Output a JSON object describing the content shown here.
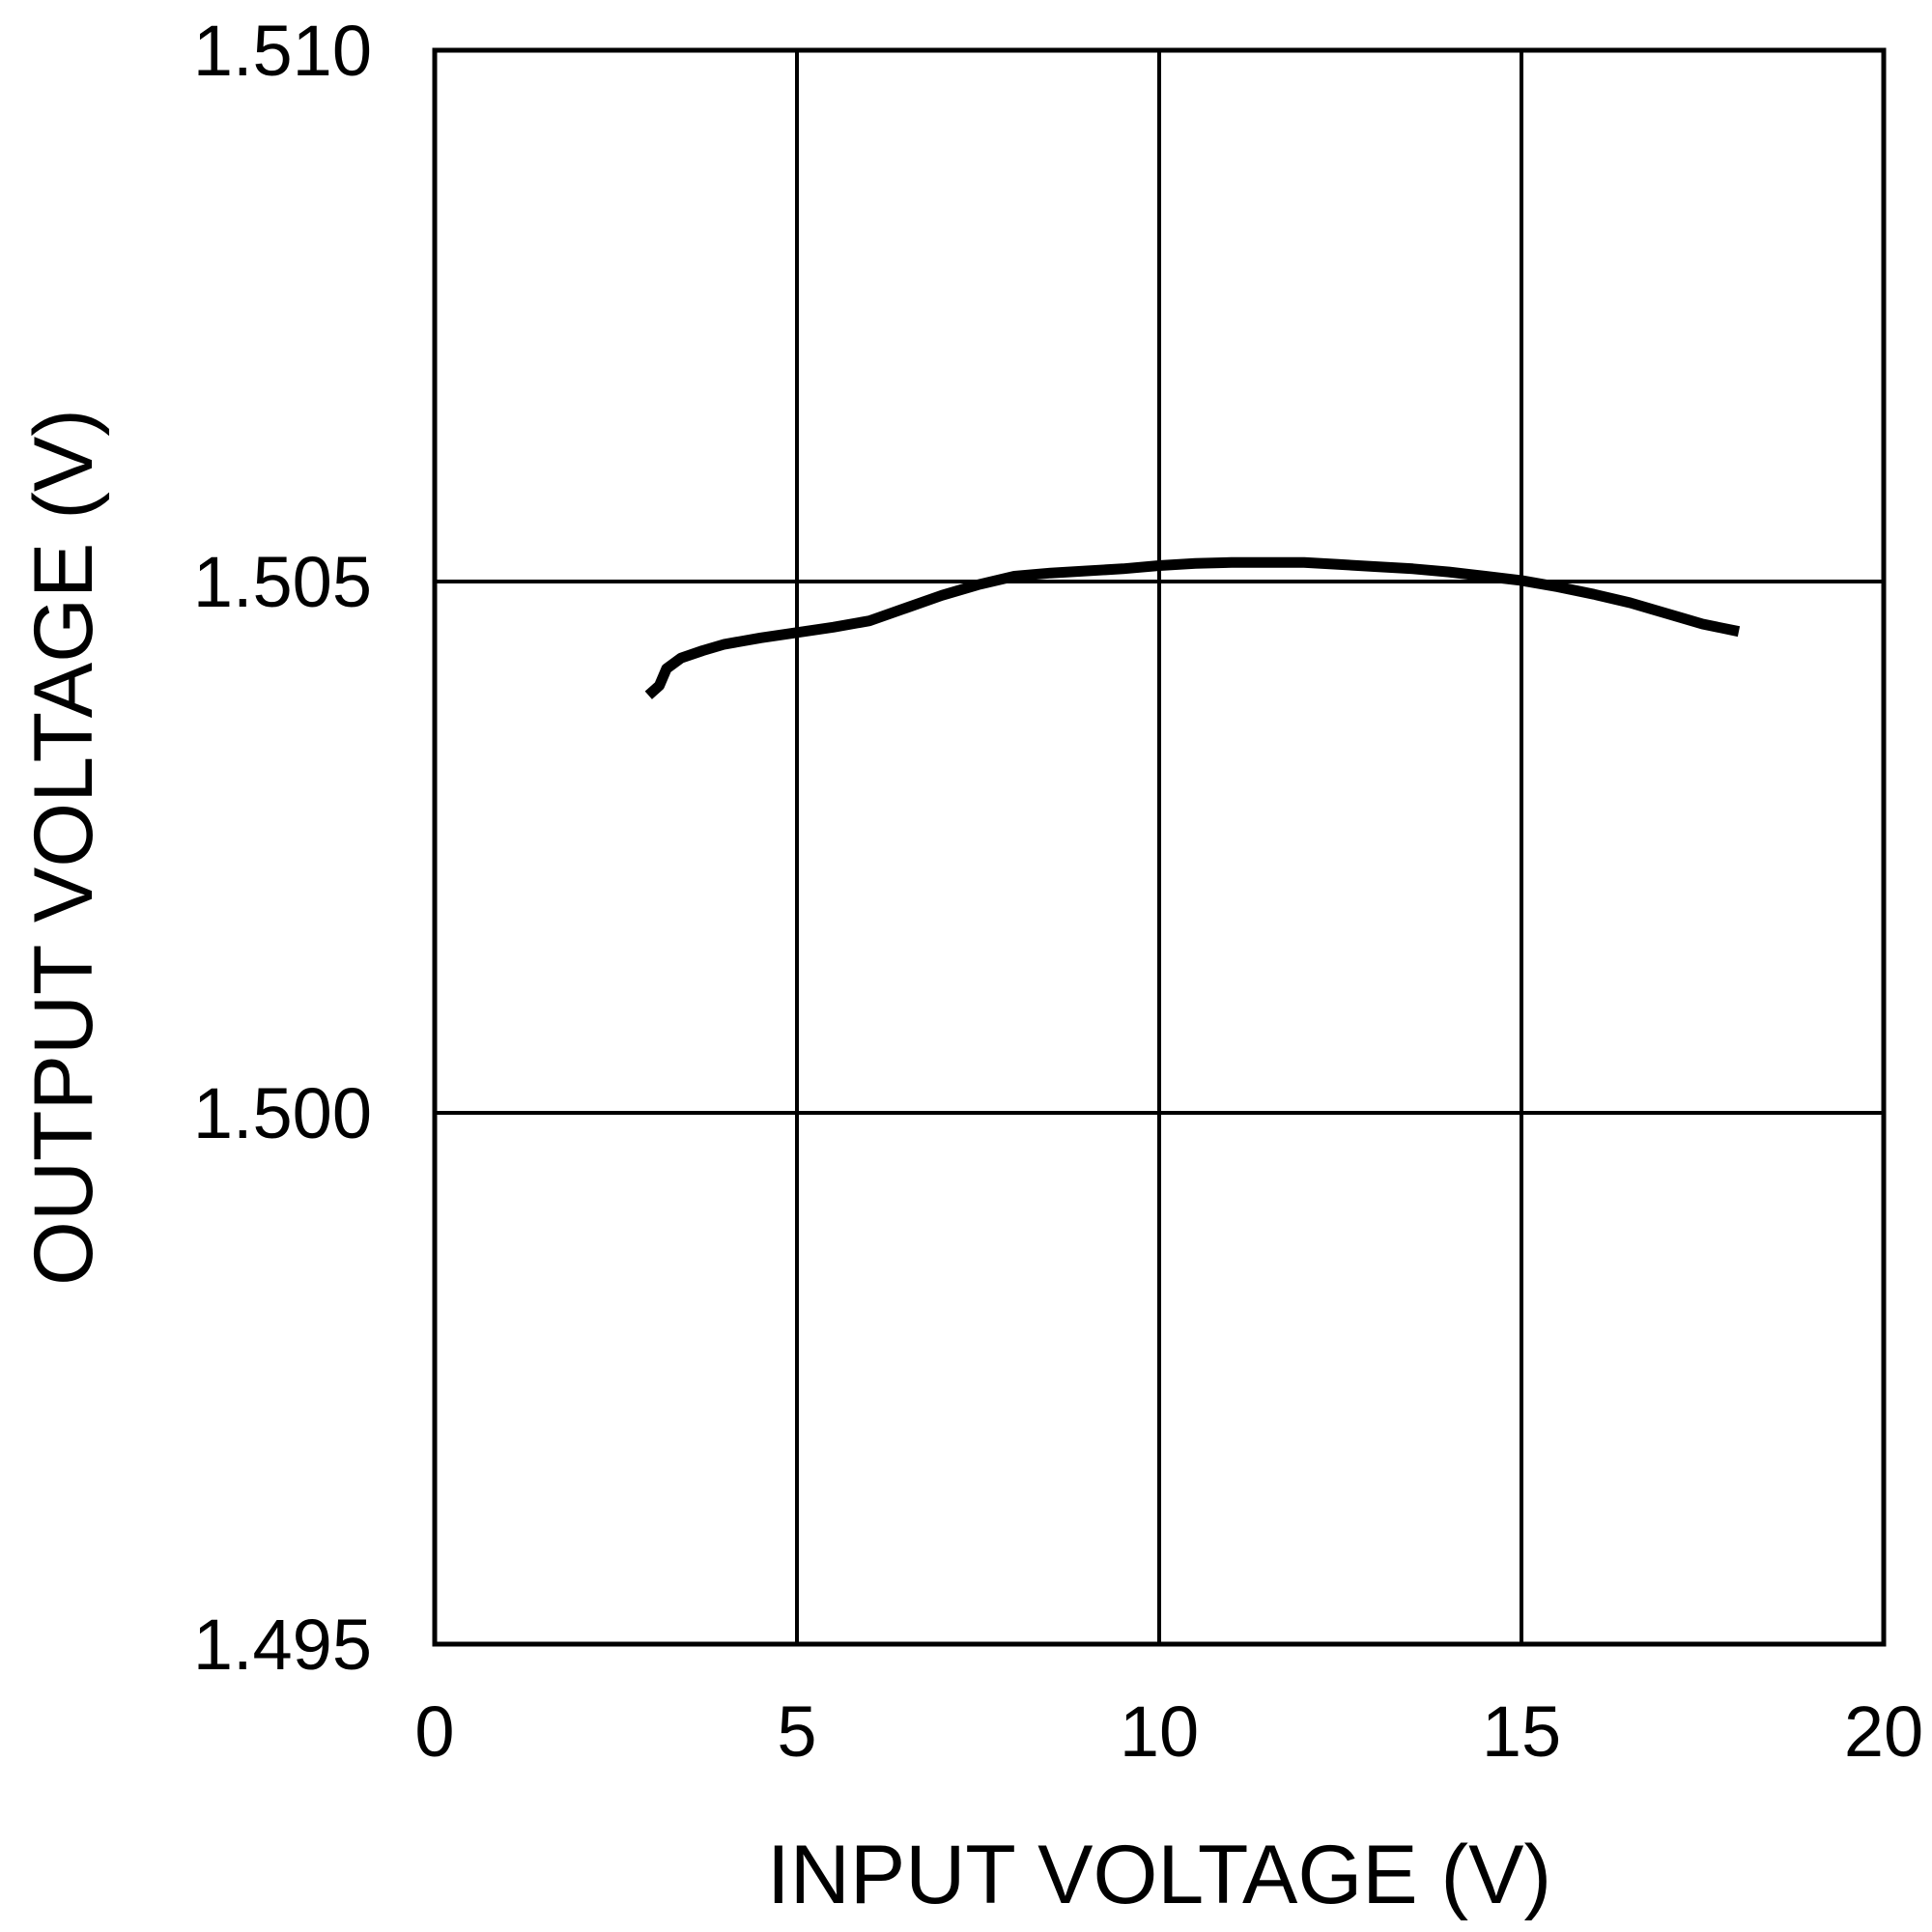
{
  "chart_data": {
    "type": "line",
    "title": "",
    "xlabel": "INPUT VOLTAGE (V)",
    "ylabel": "OUTPUT VOLTAGE (V)",
    "xlim": [
      0,
      20
    ],
    "ylim": [
      1.495,
      1.51
    ],
    "xticks": [
      0,
      5,
      10,
      15,
      20
    ],
    "xtick_labels": [
      "0",
      "5",
      "10",
      "15",
      "20"
    ],
    "yticks": [
      1.495,
      1.5,
      1.505,
      1.51
    ],
    "ytick_labels": [
      "1.495",
      "1.500",
      "1.505",
      "1.510"
    ],
    "grid": true,
    "legend": "none",
    "series": [
      {
        "color": "#000000",
        "x": [
          2.95,
          3.1,
          3.2,
          3.4,
          3.7,
          4.0,
          4.5,
          5.0,
          5.5,
          6.0,
          6.5,
          7.0,
          7.5,
          8.0,
          8.5,
          9.0,
          9.5,
          10.0,
          10.5,
          11.0,
          11.5,
          12.0,
          12.5,
          13.0,
          13.5,
          14.0,
          14.5,
          15.0,
          15.5,
          16.0,
          16.5,
          17.0,
          17.5,
          18.0
        ],
        "y": [
          1.50393,
          1.50402,
          1.50418,
          1.50428,
          1.50435,
          1.50441,
          1.50447,
          1.50452,
          1.50457,
          1.50463,
          1.50475,
          1.50487,
          1.50497,
          1.50505,
          1.50508,
          1.5051,
          1.50512,
          1.50515,
          1.50517,
          1.50518,
          1.50518,
          1.50518,
          1.50516,
          1.50514,
          1.50512,
          1.50509,
          1.50505,
          1.50501,
          1.50495,
          1.50488,
          1.5048,
          1.5047,
          1.5046,
          1.50453
        ]
      }
    ]
  }
}
